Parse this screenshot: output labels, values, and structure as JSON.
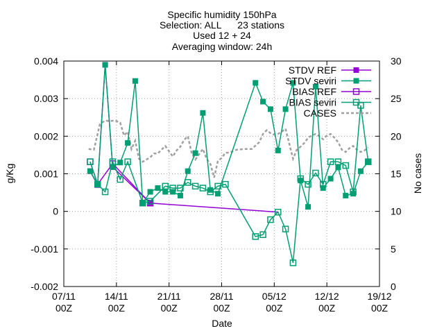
{
  "chart_data": {
    "type": "line",
    "title_lines": [
      "Specific humidity 150hPa",
      "Selection: ALL      23 stations",
      "Used 12 + 24",
      "Averaging window: 24h"
    ],
    "xlabel": "Date",
    "ylabel": "g/Kg",
    "y2label": "No cases",
    "xlim": [
      7,
      49
    ],
    "ylim": [
      -0.002,
      0.004
    ],
    "y2lim": [
      0,
      30
    ],
    "x_ticks": [
      {
        "x": 7,
        "line1": "07/11",
        "line2": "00Z"
      },
      {
        "x": 14,
        "line1": "14/11",
        "line2": "00Z"
      },
      {
        "x": 21,
        "line1": "21/11",
        "line2": "00Z"
      },
      {
        "x": 28,
        "line1": "28/11",
        "line2": "00Z"
      },
      {
        "x": 35,
        "line1": "05/12",
        "line2": "00Z"
      },
      {
        "x": 42,
        "line1": "12/12",
        "line2": "00Z"
      },
      {
        "x": 49,
        "line1": "19/12",
        "line2": "00Z"
      }
    ],
    "y_ticks": [
      {
        "v": -0.002,
        "label": "-0.002"
      },
      {
        "v": -0.001,
        "label": "-0.001"
      },
      {
        "v": 0,
        "label": "0"
      },
      {
        "v": 0.001,
        "label": "0.001"
      },
      {
        "v": 0.002,
        "label": "0.002"
      },
      {
        "v": 0.003,
        "label": "0.003"
      },
      {
        "v": 0.004,
        "label": "0.004"
      }
    ],
    "y2_ticks": [
      {
        "v": 0,
        "label": "0"
      },
      {
        "v": 5,
        "label": "5"
      },
      {
        "v": 10,
        "label": "10"
      },
      {
        "v": 15,
        "label": "15"
      },
      {
        "v": 20,
        "label": "20"
      },
      {
        "v": 25,
        "label": "25"
      },
      {
        "v": 30,
        "label": "30"
      }
    ],
    "legend_position": "top-right",
    "series": [
      {
        "name": "STDV REF",
        "color": "#9400d3",
        "marker": "filled-square",
        "axis": "y",
        "x": [
          10.5,
          11.5,
          12.5,
          13.5,
          18.5
        ],
        "y": [
          0.00107,
          0.0007,
          0.0039,
          0.00118,
          0.00022
        ]
      },
      {
        "name": "STDV seviri",
        "color": "#009e73",
        "marker": "filled-square",
        "axis": "y",
        "x": [
          10.5,
          11.5,
          12.5,
          13.5,
          14.5,
          15.5,
          16.5,
          17.5,
          18.5,
          19.5,
          20.5,
          21.5,
          22.5,
          23.5,
          24.5,
          25.5,
          26.5,
          27.5,
          32.5,
          33.5,
          34.5,
          35.5,
          36.5,
          37.5,
          38.5,
          39.5,
          40.5,
          41.5,
          42.5,
          43.5,
          44.5,
          45.5,
          46.5,
          47.5
        ],
        "y": [
          0.00107,
          0.00072,
          0.0039,
          0.00118,
          0.0013,
          0.00182,
          0.00347,
          0.00022,
          0.00052,
          0.00062,
          0.00052,
          0.00052,
          0.00042,
          0.00107,
          0.00155,
          0.00262,
          0.00057,
          0.00047,
          0.00342,
          0.00292,
          0.00272,
          0.00162,
          0.00272,
          0.00342,
          0.00082,
          0.00012,
          0.00332,
          0.00062,
          0.00087,
          0.00117,
          0.00042,
          0.00047,
          0.00107,
          0.00132
        ]
      },
      {
        "name": "BIAS REF",
        "color": "#9400d3",
        "marker": "open-square",
        "axis": "y",
        "x": [
          10.5,
          11.5,
          13.5,
          18.5,
          35.5
        ],
        "y": [
          0.00132,
          0.00072,
          0.00127,
          0.00022,
          -2e-05
        ]
      },
      {
        "name": "BIAS seviri",
        "color": "#009e73",
        "marker": "open-square",
        "axis": "y",
        "x": [
          10.5,
          11.5,
          12.5,
          13.5,
          14.5,
          15.5,
          17.5,
          18.5,
          20.5,
          21.5,
          22.5,
          23.5,
          24.5,
          25.5,
          26.5,
          27.5,
          28.5,
          32.5,
          33.5,
          34.5,
          35.5,
          36.5,
          37.5,
          38.5,
          39.5,
          40.5,
          41.5,
          42.5,
          43.5,
          44.5,
          45.5,
          46.5,
          47.5
        ],
        "y": [
          0.00132,
          0.00072,
          0.00052,
          0.00132,
          0.00085,
          0.00132,
          0.00022,
          0.00027,
          0.00067,
          0.00062,
          0.00062,
          0.00077,
          0.00067,
          0.00062,
          0.00052,
          0.00067,
          0.00072,
          -0.00067,
          -0.00062,
          -0.00022,
          -2e-05,
          -0.00047,
          -0.00137,
          0.00087,
          0.00072,
          0.00102,
          0.00072,
          0.00132,
          0.00132,
          0.00122,
          0.00052,
          0.00282,
          0.00132
        ]
      },
      {
        "name": "CASES",
        "color": "#a0a0a0",
        "marker": "none",
        "dashed": true,
        "axis": "y2",
        "x": [
          10.3,
          11,
          11.8,
          12.5,
          13,
          13.8,
          14.5,
          15,
          15.5,
          16,
          16.5,
          17,
          17.5,
          18,
          18.5,
          19,
          19.5,
          20,
          20.5,
          21,
          21.5,
          22,
          22.5,
          23,
          23.5,
          24,
          24.5,
          25,
          25.5,
          26,
          26.5,
          27,
          27.5,
          28,
          28.5,
          29,
          30,
          31,
          32,
          33,
          33.5,
          34,
          34.5,
          35,
          35.5,
          36,
          36.5,
          37,
          37.5,
          38,
          38.5,
          39,
          39.5,
          40,
          40.5,
          41,
          41.5,
          42,
          42.5,
          43,
          43.5,
          44,
          44.5,
          45,
          45.5,
          46,
          46.5,
          47,
          47.5
        ],
        "y": [
          18.3,
          18.2,
          21.6,
          22.1,
          22,
          22.1,
          21.8,
          20.1,
          20.6,
          18.3,
          19.4,
          17,
          16.6,
          16.9,
          17.2,
          17.7,
          17.7,
          18.2,
          18.7,
          18,
          17.3,
          18.1,
          18.6,
          19.5,
          20,
          17.8,
          16.9,
          17.6,
          18.3,
          17,
          16.3,
          14.5,
          16.7,
          17.1,
          17.8,
          17.8,
          18.2,
          18.3,
          18.3,
          19.2,
          20.3,
          20.8,
          20.4,
          20.2,
          20.3,
          20.6,
          21,
          19,
          17,
          18.2,
          18.6,
          19.1,
          19.8,
          20.1,
          20.3,
          20,
          19.6,
          20.1,
          20.3,
          19.8,
          19.2,
          18.2,
          17.9,
          18.4,
          18.7,
          18.2,
          17.9,
          18.1,
          18.5
        ]
      }
    ]
  }
}
